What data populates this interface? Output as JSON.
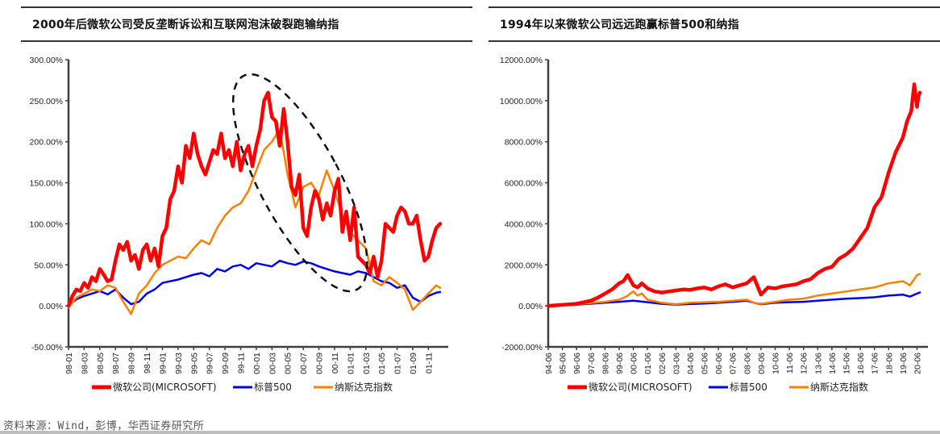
{
  "charts": [
    {
      "id": "left",
      "title": "2000年后微软公司受反垄断诉讼和互联网泡沫破裂跑输纳指",
      "annotation": "dashed-ellipse-around-2000-crash"
    },
    {
      "id": "right",
      "title": "1994年以来微软公司远远跑赢标普500和纳指"
    }
  ],
  "source": "资料来源：Wind，彭博，华西证券研究所",
  "colors": {
    "microsoft": "#ff0000",
    "sp500": "#0000ee",
    "nasdaq": "#ff8000",
    "axis": "#404040",
    "annotation": "#111111"
  },
  "chart_data": [
    {
      "type": "line",
      "title": "2000年后微软公司受反垄断诉讼和互联网泡沫破裂跑输纳指",
      "xlabel": "",
      "ylabel": "",
      "ylim": [
        -50,
        300
      ],
      "yticks": [
        "300.00%",
        "250.00%",
        "200.00%",
        "150.00%",
        "100.00%",
        "50.00%",
        "0.00%",
        "-50.00%"
      ],
      "ytick_values": [
        300,
        250,
        200,
        150,
        100,
        50,
        0,
        -50
      ],
      "xticks": [
        "98-01",
        "98-03",
        "98-05",
        "98-07",
        "98-09",
        "98-11",
        "99-01",
        "99-03",
        "99-05",
        "99-07",
        "99-09",
        "99-11",
        "00-01",
        "00-03",
        "00-05",
        "00-07",
        "00-09",
        "00-11",
        "01-01",
        "01-03",
        "01-05",
        "01-07",
        "01-09",
        "01-11"
      ],
      "x_months": [
        0,
        47.5
      ],
      "grid": false,
      "legend_position": "bottom",
      "series": [
        {
          "name": "微软公司(MICROSOFT)",
          "key": "microsoft",
          "x": [
            0,
            0.5,
            1,
            1.5,
            2,
            2.5,
            3,
            3.5,
            4,
            4.5,
            5,
            5.5,
            6,
            6.5,
            7,
            7.5,
            8,
            8.5,
            9,
            9.5,
            10,
            10.5,
            11,
            11.5,
            12,
            12.5,
            13,
            13.5,
            14,
            14.5,
            15,
            15.5,
            16,
            16.5,
            17,
            17.5,
            18,
            18.5,
            19,
            19.5,
            20,
            20.5,
            21,
            21.5,
            22,
            22.5,
            23,
            23.5,
            24,
            24.5,
            25,
            25.5,
            26,
            26.5,
            27,
            27.5,
            28,
            28.5,
            29,
            29.5,
            30,
            30.5,
            31,
            31.5,
            32,
            32.5,
            33,
            33.5,
            34,
            34.5,
            35,
            35.5,
            36,
            36.5,
            37,
            37.5,
            38,
            38.5,
            39,
            39.5,
            40,
            40.5,
            41,
            41.5,
            42,
            42.5,
            43,
            43.5,
            44,
            44.5,
            45,
            45.5,
            46,
            46.5,
            47,
            47.5
          ],
          "values": [
            0,
            12,
            20,
            18,
            28,
            22,
            35,
            30,
            45,
            38,
            30,
            32,
            55,
            75,
            68,
            78,
            55,
            62,
            45,
            68,
            75,
            55,
            70,
            48,
            85,
            95,
            130,
            140,
            170,
            150,
            195,
            180,
            210,
            185,
            170,
            160,
            175,
            190,
            185,
            210,
            180,
            190,
            170,
            200,
            165,
            185,
            195,
            170,
            195,
            215,
            250,
            260,
            230,
            225,
            195,
            240,
            200,
            145,
            135,
            160,
            95,
            85,
            120,
            140,
            130,
            105,
            125,
            110,
            140,
            155,
            90,
            115,
            80,
            120,
            60,
            55,
            50,
            40,
            60,
            35,
            55,
            100,
            95,
            90,
            110,
            120,
            115,
            100,
            100,
            110,
            80,
            55,
            60,
            80,
            95,
            100
          ]
        },
        {
          "name": "标普500",
          "key": "sp500",
          "x": [
            0,
            1,
            2,
            3,
            4,
            5,
            6,
            7,
            8,
            9,
            10,
            11,
            12,
            13,
            14,
            15,
            16,
            17,
            18,
            19,
            20,
            21,
            22,
            23,
            24,
            25,
            26,
            27,
            28,
            29,
            30,
            31,
            32,
            33,
            34,
            35,
            36,
            37,
            38,
            39,
            40,
            41,
            42,
            43,
            44,
            45,
            46,
            47,
            47.5
          ],
          "values": [
            0,
            8,
            12,
            15,
            18,
            14,
            20,
            10,
            2,
            5,
            15,
            20,
            28,
            30,
            32,
            35,
            38,
            40,
            36,
            45,
            42,
            48,
            50,
            45,
            52,
            50,
            48,
            55,
            52,
            50,
            54,
            52,
            48,
            45,
            42,
            40,
            38,
            42,
            40,
            35,
            30,
            28,
            22,
            25,
            10,
            5,
            12,
            16,
            17
          ]
        },
        {
          "name": "纳斯达克指数",
          "key": "nasdaq",
          "x": [
            0,
            1,
            2,
            3,
            4,
            5,
            6,
            7,
            8,
            9,
            10,
            11,
            12,
            13,
            14,
            15,
            16,
            17,
            18,
            19,
            20,
            21,
            22,
            23,
            24,
            25,
            26,
            27,
            28,
            29,
            30,
            31,
            32,
            33,
            34,
            35,
            36,
            37,
            38,
            39,
            40,
            41,
            42,
            43,
            44,
            45,
            46,
            47,
            47.5
          ],
          "values": [
            -2,
            10,
            15,
            20,
            18,
            25,
            22,
            5,
            -10,
            15,
            25,
            40,
            50,
            55,
            60,
            58,
            70,
            80,
            75,
            95,
            110,
            120,
            125,
            140,
            165,
            190,
            200,
            215,
            160,
            120,
            145,
            150,
            135,
            165,
            140,
            110,
            90,
            80,
            70,
            30,
            25,
            35,
            28,
            20,
            -5,
            5,
            15,
            25,
            22
          ]
        }
      ]
    },
    {
      "type": "line",
      "title": "1994年以来微软公司远远跑赢标普500和纳指",
      "xlabel": "",
      "ylabel": "",
      "ylim": [
        -2000,
        12000
      ],
      "yticks": [
        "12000.00%",
        "10000.00%",
        "8000.00%",
        "6000.00%",
        "4000.00%",
        "2000.00%",
        "0.00%",
        "-2000.00%"
      ],
      "ytick_values": [
        12000,
        10000,
        8000,
        6000,
        4000,
        2000,
        0,
        -2000
      ],
      "xticks": [
        "94-06",
        "95-06",
        "96-06",
        "97-06",
        "98-06",
        "99-06",
        "00-06",
        "01-06",
        "02-06",
        "03-06",
        "04-06",
        "05-06",
        "06-06",
        "07-06",
        "08-06",
        "09-06",
        "10-06",
        "11-06",
        "12-06",
        "13-06",
        "14-06",
        "15-06",
        "16-06",
        "17-06",
        "18-06",
        "19-06",
        "20-06"
      ],
      "x_years": [
        0,
        26.2
      ],
      "grid": false,
      "legend_position": "bottom",
      "series": [
        {
          "name": "微软公司(MICROSOFT)",
          "key": "microsoft",
          "x": [
            0,
            1,
            2,
            3,
            3.5,
            4,
            4.5,
            5,
            5.3,
            5.6,
            6,
            6.3,
            6.6,
            7,
            7.5,
            8,
            8.5,
            9,
            9.5,
            10,
            10.5,
            11,
            11.5,
            12,
            12.5,
            13,
            13.5,
            14,
            14.5,
            15,
            15.5,
            16,
            16.5,
            17,
            17.5,
            18,
            18.5,
            19,
            19.5,
            20,
            20.5,
            21,
            21.5,
            22,
            22.5,
            23,
            23.5,
            24,
            24.5,
            25,
            25.3,
            25.6,
            25.8,
            26,
            26.1,
            26.2
          ],
          "values": [
            0,
            50,
            100,
            250,
            400,
            600,
            800,
            1100,
            1200,
            1500,
            1000,
            900,
            1100,
            850,
            700,
            650,
            700,
            750,
            800,
            780,
            850,
            900,
            800,
            950,
            1050,
            900,
            1000,
            1100,
            1400,
            550,
            900,
            850,
            950,
            1000,
            1050,
            1200,
            1300,
            1600,
            1800,
            1900,
            2300,
            2500,
            2800,
            3300,
            3800,
            4800,
            5300,
            6500,
            7500,
            8200,
            9000,
            9500,
            10800,
            9700,
            10200,
            10400
          ]
        },
        {
          "name": "标普500",
          "key": "sp500",
          "x": [
            0,
            2,
            4,
            5,
            6,
            7,
            8,
            9,
            10,
            11,
            12,
            13,
            14,
            14.5,
            15,
            16,
            17,
            18,
            19,
            20,
            21,
            22,
            23,
            24,
            25,
            25.5,
            26,
            26.2
          ],
          "values": [
            0,
            60,
            150,
            200,
            250,
            180,
            100,
            60,
            90,
            110,
            150,
            200,
            250,
            150,
            80,
            150,
            180,
            200,
            250,
            300,
            350,
            380,
            420,
            500,
            550,
            450,
            600,
            650
          ]
        },
        {
          "name": "纳斯达克指数",
          "key": "nasdaq",
          "x": [
            0,
            2,
            4,
            5,
            5.5,
            6,
            6.3,
            6.6,
            7,
            8,
            9,
            10,
            11,
            12,
            13,
            14,
            14.5,
            15,
            16,
            17,
            18,
            19,
            20,
            21,
            22,
            23,
            24,
            25,
            25.5,
            26,
            26.2
          ],
          "values": [
            0,
            80,
            200,
            300,
            450,
            700,
            500,
            600,
            300,
            150,
            80,
            150,
            180,
            200,
            250,
            300,
            150,
            100,
            200,
            300,
            350,
            500,
            600,
            700,
            800,
            900,
            1100,
            1200,
            1000,
            1500,
            1550
          ]
        }
      ]
    }
  ],
  "legend": {
    "items": [
      {
        "label": "微软公司(MICROSOFT)",
        "key": "microsoft"
      },
      {
        "label": "标普500",
        "key": "sp500"
      },
      {
        "label": "纳斯达克指数",
        "key": "nasdaq"
      }
    ]
  }
}
